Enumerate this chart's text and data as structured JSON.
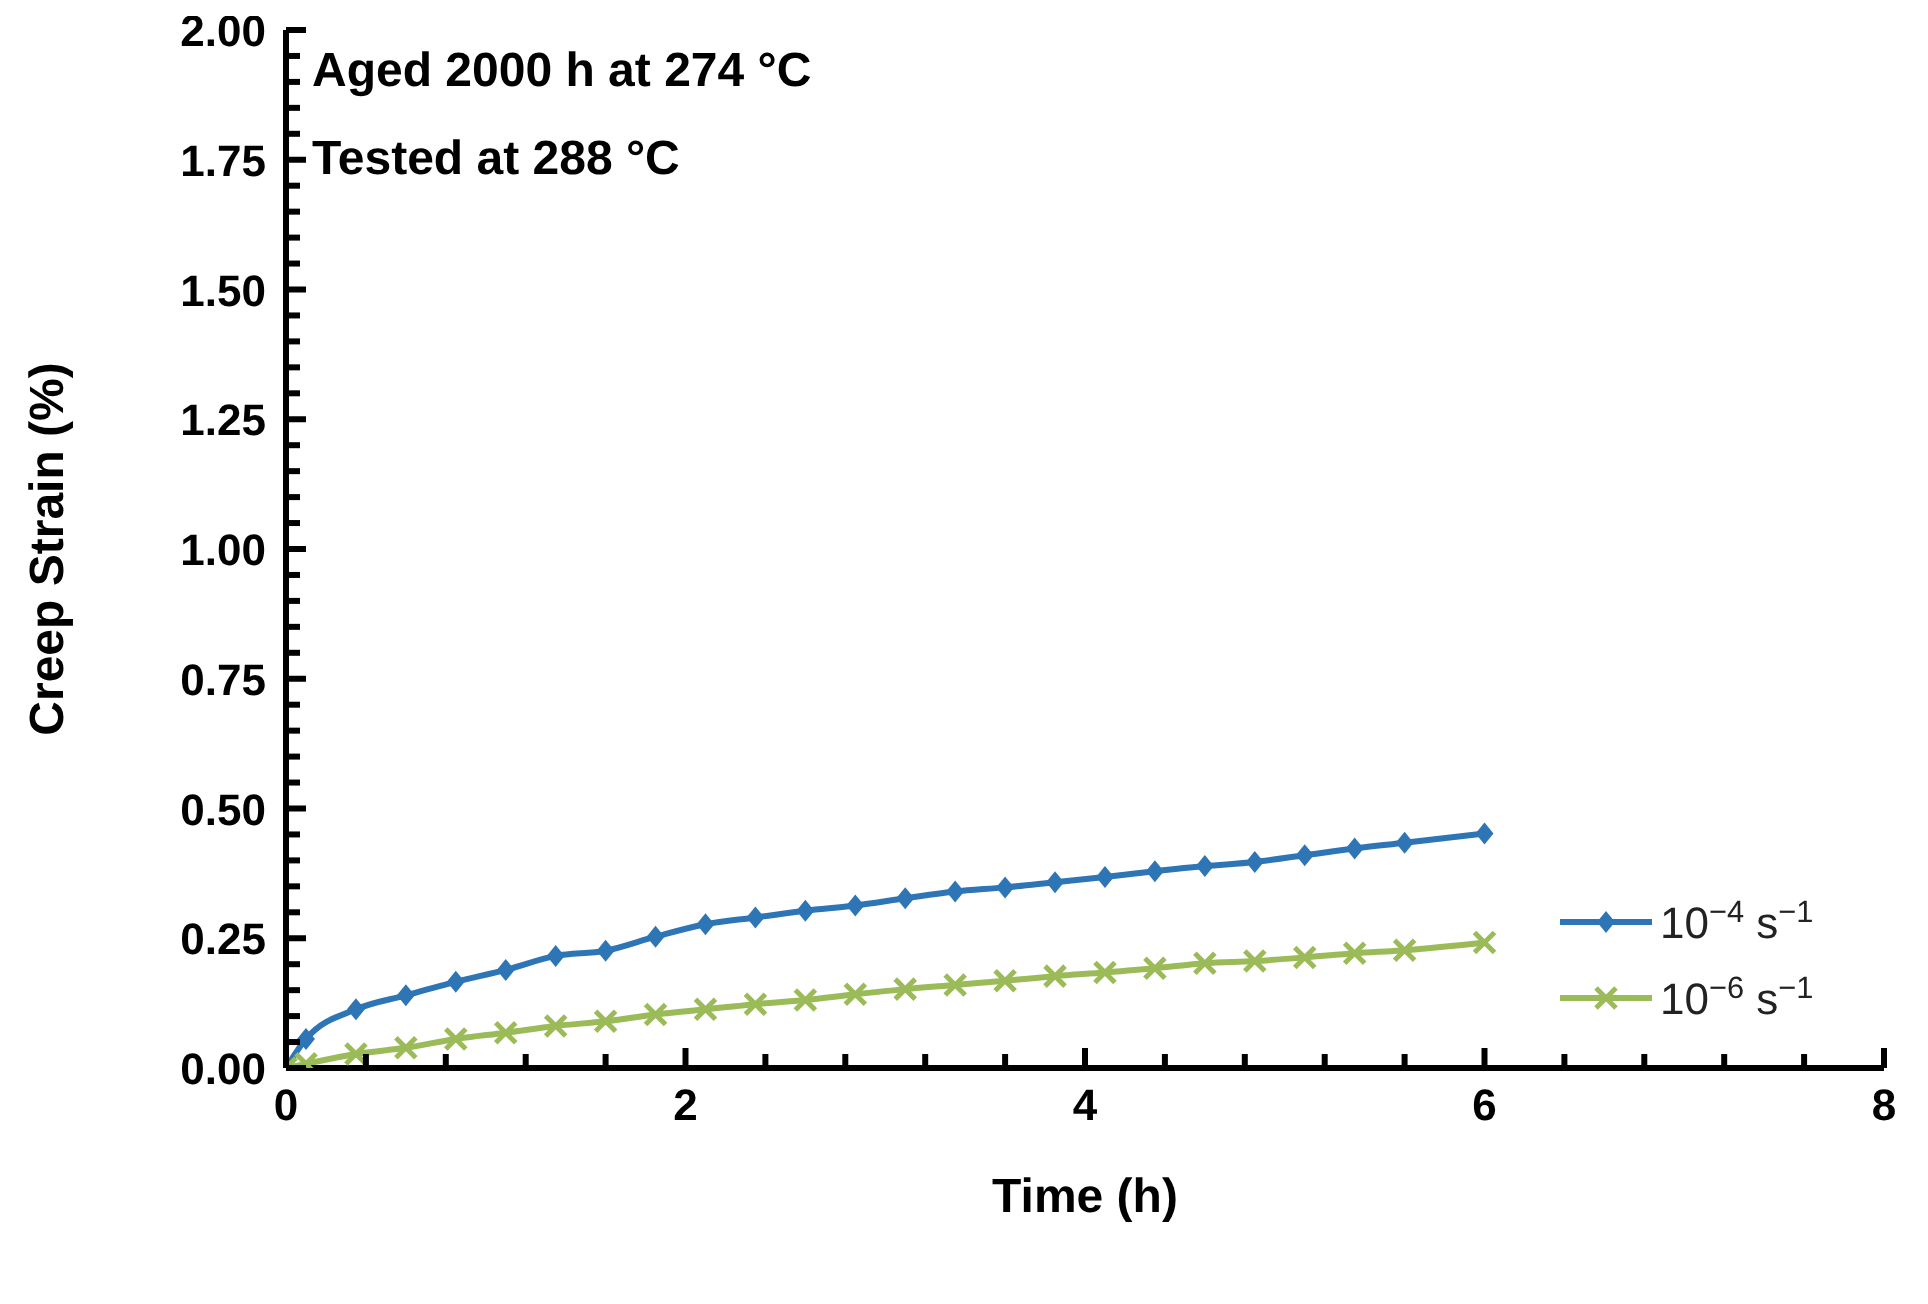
{
  "chart_data": {
    "type": "line",
    "xlabel": "Time (h)",
    "ylabel": "Creep Strain (%)",
    "annotations": [
      "Aged 2000 h at 274 °C",
      "Tested at 288 °C"
    ],
    "x": [
      0,
      0.1,
      0.35,
      0.6,
      0.85,
      1.1,
      1.35,
      1.6,
      1.85,
      2.1,
      2.35,
      2.6,
      2.85,
      3.1,
      3.35,
      3.6,
      3.85,
      4.1,
      4.35,
      4.6,
      4.85,
      5.1,
      5.35,
      5.6,
      6.0
    ],
    "series": [
      {
        "name": "10$^{−4}$ s$^{−1}$",
        "color": "#2e75b6",
        "marker": "diamond",
        "values": [
          0,
          0.056,
          0.113,
          0.14,
          0.166,
          0.189,
          0.216,
          0.226,
          0.253,
          0.277,
          0.29,
          0.303,
          0.313,
          0.327,
          0.34,
          0.348,
          0.358,
          0.368,
          0.379,
          0.389,
          0.397,
          0.41,
          0.423,
          0.434,
          0.452
        ]
      },
      {
        "name": "10$^{−6}$ s$^{−1}$",
        "color": "#9bbb59",
        "marker": "cross",
        "values": [
          0,
          0.008,
          0.027,
          0.039,
          0.056,
          0.068,
          0.081,
          0.09,
          0.103,
          0.113,
          0.123,
          0.131,
          0.142,
          0.152,
          0.16,
          0.168,
          0.177,
          0.184,
          0.192,
          0.202,
          0.206,
          0.213,
          0.221,
          0.227,
          0.242
        ]
      }
    ],
    "xlim": [
      0,
      8
    ],
    "xticks": [
      0,
      {
        "value": 0.4,
        "label": null
      },
      {
        "value": 0.8,
        "label": null
      },
      {
        "value": 1.2,
        "label": null
      },
      {
        "value": 1.6,
        "label": null
      },
      2,
      {
        "value": 2.4,
        "label": null
      },
      {
        "value": 2.8,
        "label": null
      },
      {
        "value": 3.2,
        "label": null
      },
      {
        "value": 3.6,
        "label": null
      },
      4,
      {
        "value": 4.4,
        "label": null
      },
      {
        "value": 4.8,
        "label": null
      },
      {
        "value": 5.2,
        "label": null
      },
      {
        "value": 5.6,
        "label": null
      },
      6,
      {
        "value": 6.4,
        "label": null
      },
      {
        "value": 6.8,
        "label": null
      },
      {
        "value": 7.2,
        "label": null
      },
      {
        "value": 7.6,
        "label": null
      },
      8
    ],
    "ylim": [
      0,
      2
    ],
    "yticks": [
      {
        "value": 0,
        "label": "0.00"
      },
      {
        "value": 0.05,
        "label": null
      },
      {
        "value": 0.1,
        "label": null
      },
      {
        "value": 0.15,
        "label": null
      },
      {
        "value": 0.2,
        "label": null
      },
      {
        "value": 0.25,
        "label": "0.25"
      },
      {
        "value": 0.3,
        "label": null
      },
      {
        "value": 0.35,
        "label": null
      },
      {
        "value": 0.4,
        "label": null
      },
      {
        "value": 0.45,
        "label": null
      },
      {
        "value": 0.5,
        "label": "0.50"
      },
      {
        "value": 0.55,
        "label": null
      },
      {
        "value": 0.6,
        "label": null
      },
      {
        "value": 0.65,
        "label": null
      },
      {
        "value": 0.7,
        "label": null
      },
      {
        "value": 0.75,
        "label": "0.75"
      },
      {
        "value": 0.8,
        "label": null
      },
      {
        "value": 0.85,
        "label": null
      },
      {
        "value": 0.9,
        "label": null
      },
      {
        "value": 0.95,
        "label": null
      },
      {
        "value": 1,
        "label": "1.00"
      },
      {
        "value": 1.05,
        "label": null
      },
      {
        "value": 1.1,
        "label": null
      },
      {
        "value": 1.15,
        "label": null
      },
      {
        "value": 1.2,
        "label": null
      },
      {
        "value": 1.25,
        "label": "1.25"
      },
      {
        "value": 1.3,
        "label": null
      },
      {
        "value": 1.35,
        "label": null
      },
      {
        "value": 1.4,
        "label": null
      },
      {
        "value": 1.45,
        "label": null
      },
      {
        "value": 1.5,
        "label": "1.50"
      },
      {
        "value": 1.55,
        "label": null
      },
      {
        "value": 1.6,
        "label": null
      },
      {
        "value": 1.65,
        "label": null
      },
      {
        "value": 1.7,
        "label": null
      },
      {
        "value": 1.75,
        "label": "1.75"
      },
      {
        "value": 1.8,
        "label": null
      },
      {
        "value": 1.85,
        "label": null
      },
      {
        "value": 1.9,
        "label": null
      },
      {
        "value": 1.95,
        "label": null
      },
      {
        "value": 2,
        "label": "2.00"
      }
    ],
    "grid": false,
    "legend": "right"
  }
}
